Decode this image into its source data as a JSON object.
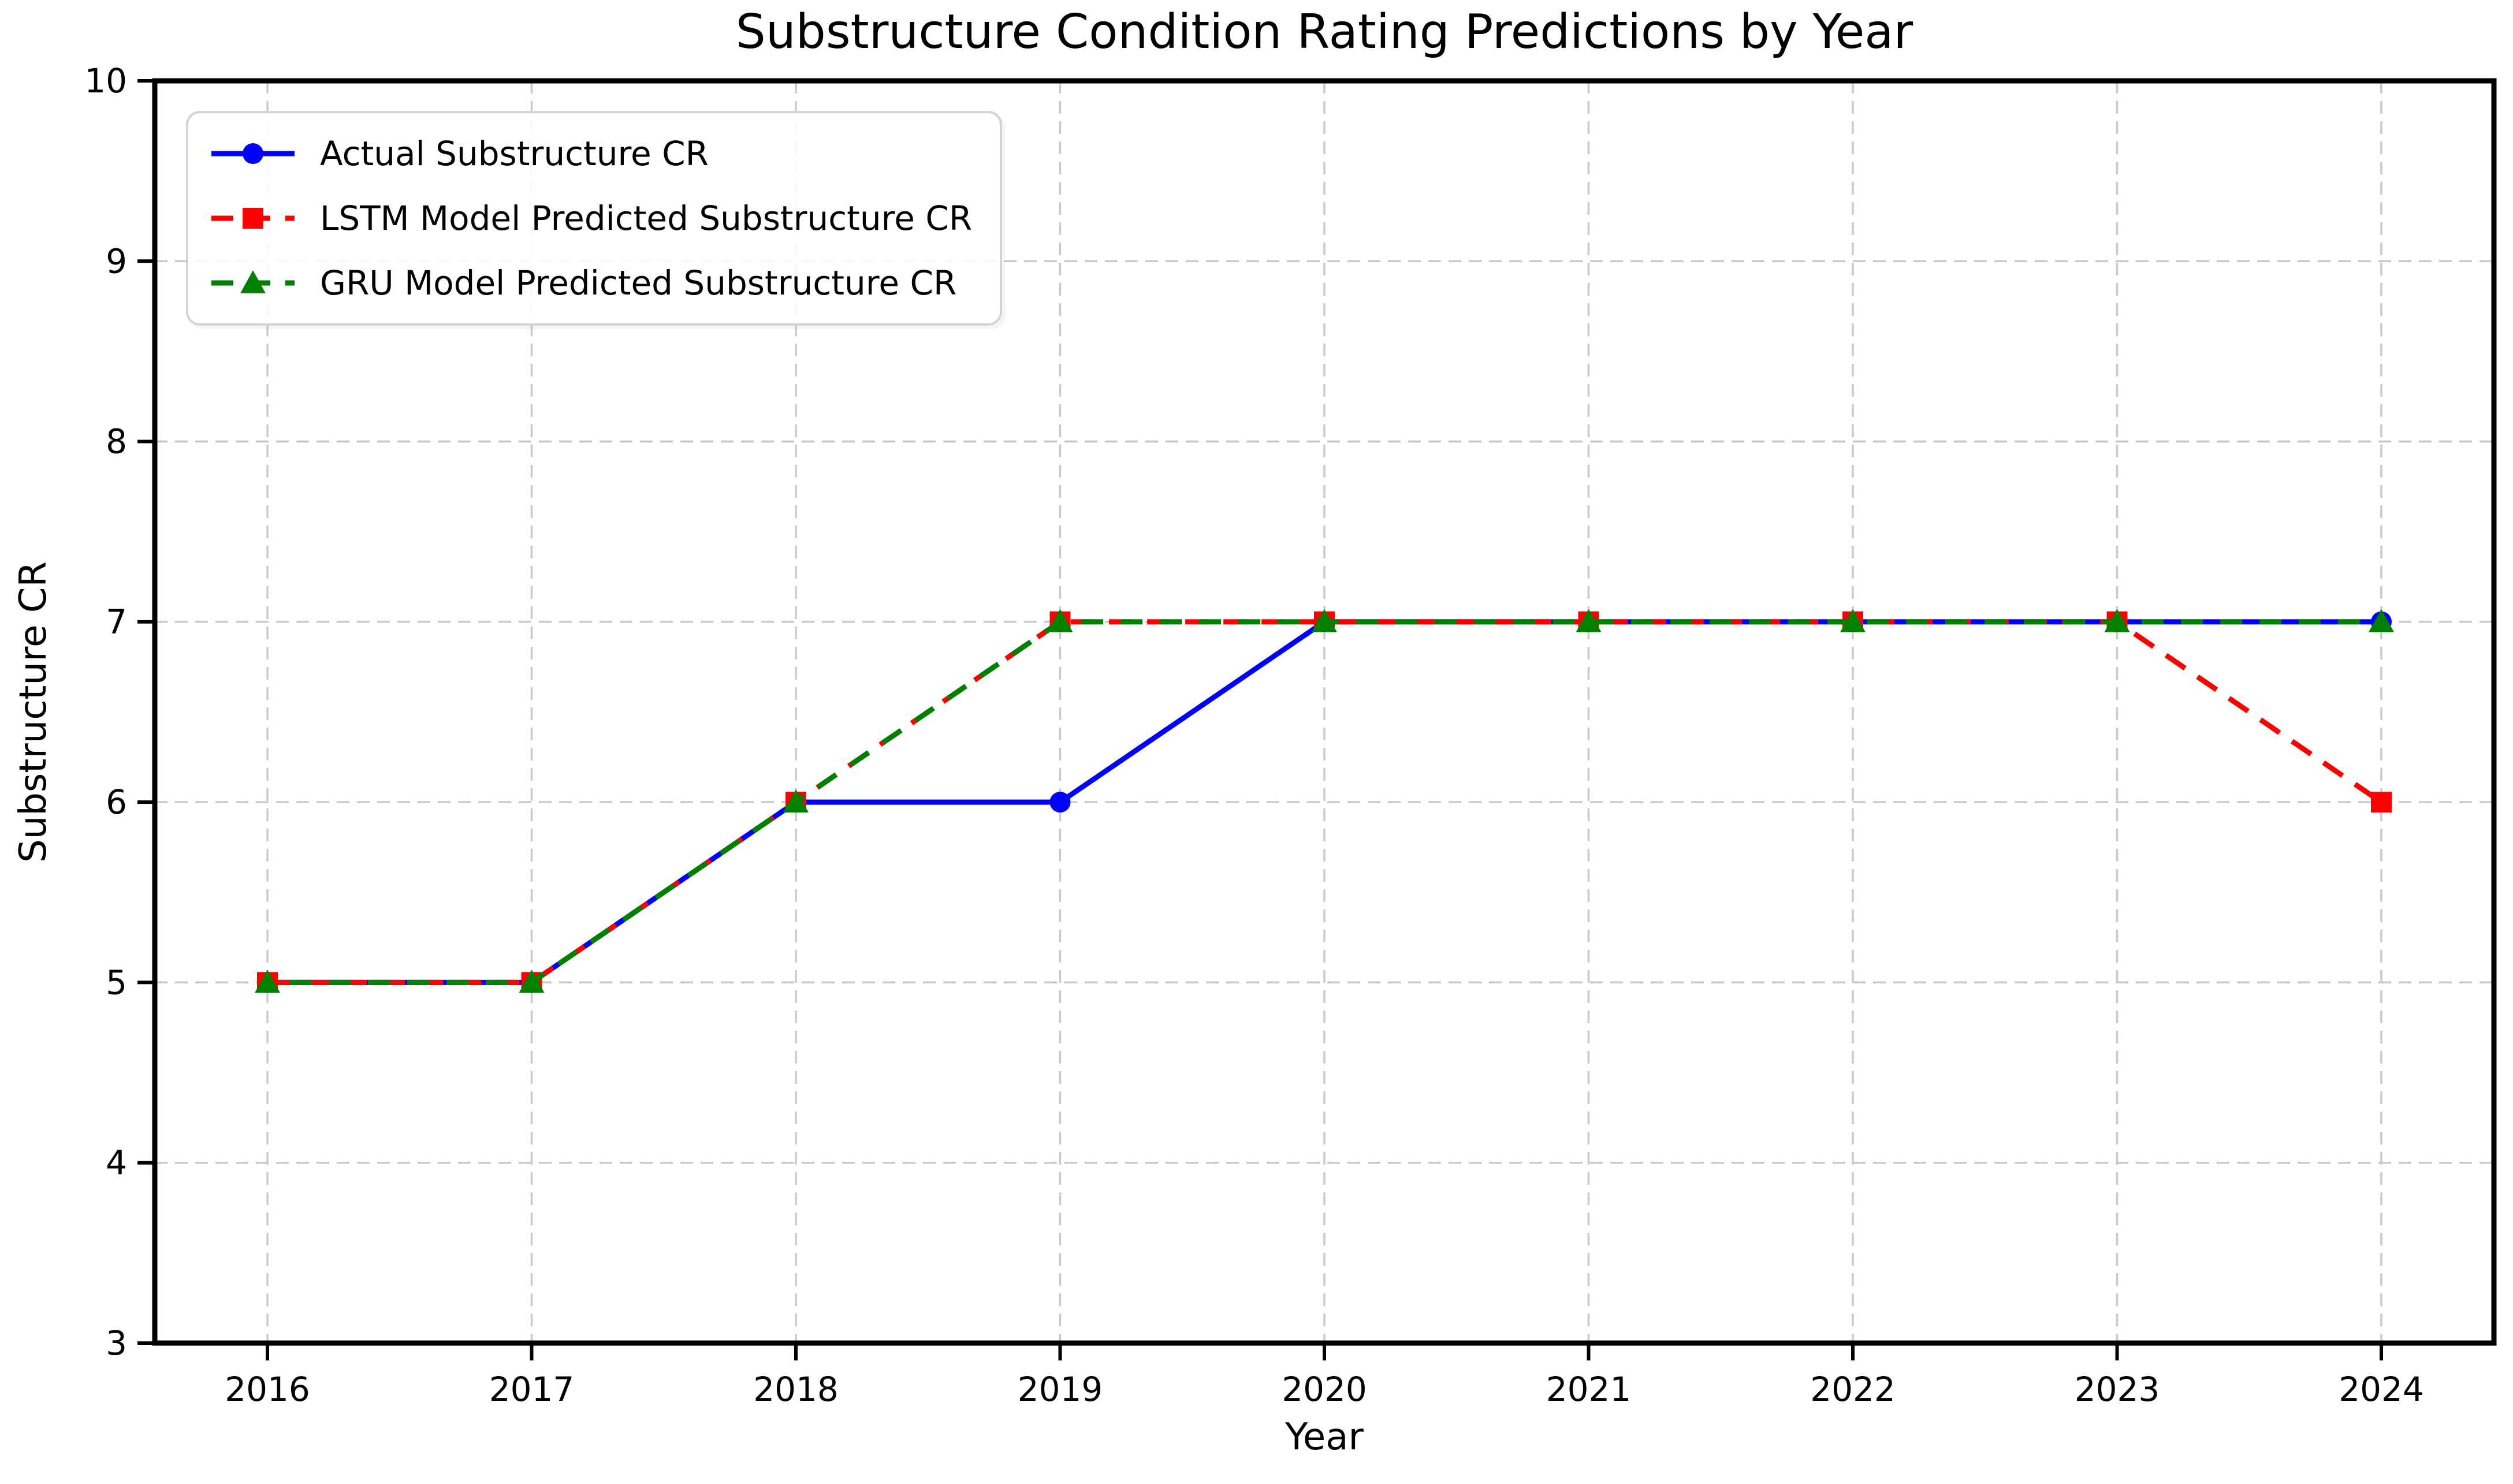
{
  "chart_data": {
    "type": "line",
    "title": "Substructure Condition Rating Predictions by Year",
    "xlabel": "Year",
    "ylabel": "Substructure CR",
    "x": [
      2016,
      2017,
      2018,
      2019,
      2020,
      2021,
      2022,
      2023,
      2024
    ],
    "xtick_labels": [
      "2016",
      "2017",
      "2018",
      "2019",
      "2020",
      "2021",
      "2022",
      "2023",
      "2024"
    ],
    "yticks": [
      3,
      4,
      5,
      6,
      7,
      8,
      9,
      10
    ],
    "ytick_labels": [
      "3",
      "4",
      "5",
      "6",
      "7",
      "8",
      "9",
      "10"
    ],
    "ylim": [
      3,
      10
    ],
    "grid": true,
    "grid_style": "dashed",
    "legend_position": "upper left",
    "series": [
      {
        "name": "Actual Substructure CR",
        "color": "#0000ff",
        "linestyle": "solid",
        "marker": "circle",
        "values": [
          5,
          5,
          6,
          6,
          7,
          7,
          7,
          7,
          7
        ]
      },
      {
        "name": "LSTM Model Predicted Substructure CR",
        "color": "#ff0000",
        "linestyle": "dashed",
        "marker": "square",
        "values": [
          5,
          5,
          6,
          7,
          7,
          7,
          7,
          7,
          6
        ]
      },
      {
        "name": "GRU Model Predicted Substructure CR",
        "color": "#008000",
        "linestyle": "dashed",
        "marker": "triangle",
        "values": [
          5,
          5,
          6,
          7,
          7,
          7,
          7,
          7,
          7
        ]
      }
    ],
    "colors": {
      "grid": "#c9c9c9",
      "axis": "#000000",
      "text": "#000000",
      "background": "#ffffff"
    }
  }
}
